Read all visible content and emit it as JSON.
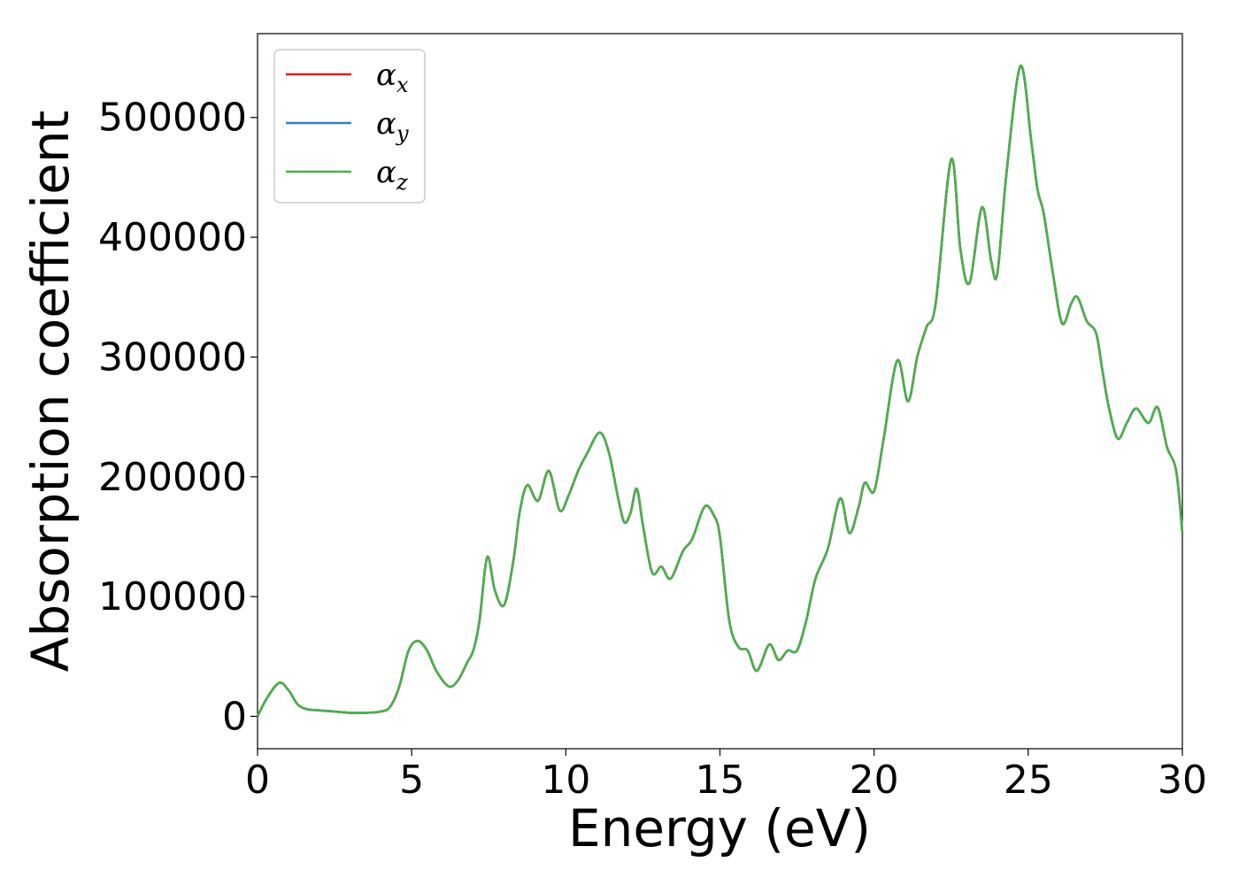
{
  "chart_data": {
    "type": "line",
    "xlabel": "Energy (eV)",
    "ylabel": "Absorption coefficient",
    "xlim": [
      0,
      30
    ],
    "ylim": [
      -27000,
      570000
    ],
    "xticks": [
      0,
      5,
      10,
      15,
      20,
      25,
      30
    ],
    "xtick_labels": [
      "0",
      "5",
      "10",
      "15",
      "20",
      "25",
      "30"
    ],
    "yticks": [
      0,
      100000,
      200000,
      300000,
      400000,
      500000
    ],
    "ytick_labels": [
      "0",
      "100000",
      "200000",
      "300000",
      "400000",
      "500000"
    ],
    "grid": false,
    "legend_position": "top-left",
    "series": [
      {
        "name": "αx",
        "symbol": "α",
        "subscript": "x",
        "color": "#e41a1c",
        "ref": "curve"
      },
      {
        "name": "αy",
        "symbol": "α",
        "subscript": "y",
        "color": "#377eb8",
        "ref": "curve"
      },
      {
        "name": "αz",
        "symbol": "α",
        "subscript": "z",
        "color": "#4daf4a",
        "ref": "curve"
      }
    ],
    "curve": {
      "x": [
        0,
        0.3,
        0.7,
        1.0,
        1.3,
        1.6,
        2.0,
        2.5,
        3.0,
        3.5,
        4.0,
        4.3,
        4.6,
        4.9,
        5.2,
        5.5,
        5.8,
        6.2,
        6.5,
        6.8,
        7.0,
        7.2,
        7.45,
        7.7,
        8.0,
        8.3,
        8.5,
        8.75,
        9.1,
        9.45,
        9.8,
        10.1,
        10.4,
        10.7,
        11.1,
        11.4,
        11.7,
        11.9,
        12.1,
        12.3,
        12.5,
        12.8,
        13.1,
        13.4,
        13.8,
        14.1,
        14.5,
        14.8,
        15.0,
        15.3,
        15.6,
        15.9,
        16.2,
        16.6,
        16.9,
        17.2,
        17.5,
        17.8,
        18.1,
        18.5,
        18.9,
        19.2,
        19.5,
        19.7,
        20.0,
        20.3,
        20.75,
        21.1,
        21.4,
        21.7,
        22.0,
        22.5,
        22.8,
        23.1,
        23.5,
        23.8,
        24.0,
        24.3,
        24.75,
        25.1,
        25.3,
        25.5,
        25.8,
        26.1,
        26.4,
        26.6,
        26.9,
        27.2,
        27.4,
        27.6,
        27.9,
        28.2,
        28.5,
        28.9,
        29.2,
        29.5,
        29.8,
        30.0
      ],
      "y": [
        0,
        15000,
        28000,
        22000,
        10000,
        6000,
        5000,
        4000,
        3000,
        3000,
        4000,
        8000,
        25000,
        55000,
        63000,
        55000,
        38000,
        25000,
        30000,
        45000,
        55000,
        80000,
        133000,
        105000,
        93000,
        130000,
        170000,
        193000,
        180000,
        205000,
        172000,
        185000,
        205000,
        220000,
        237000,
        220000,
        182000,
        162000,
        170000,
        190000,
        160000,
        120000,
        125000,
        115000,
        138000,
        148000,
        175000,
        168000,
        150000,
        80000,
        58000,
        55000,
        38000,
        60000,
        47000,
        55000,
        55000,
        80000,
        115000,
        140000,
        182000,
        153000,
        175000,
        195000,
        188000,
        230000,
        297000,
        263000,
        300000,
        325000,
        345000,
        465000,
        390000,
        362000,
        425000,
        380000,
        370000,
        455000,
        543000,
        480000,
        440000,
        420000,
        370000,
        328000,
        345000,
        350000,
        330000,
        320000,
        290000,
        260000,
        232000,
        245000,
        257000,
        245000,
        258000,
        225000,
        205000,
        153000
      ]
    }
  }
}
